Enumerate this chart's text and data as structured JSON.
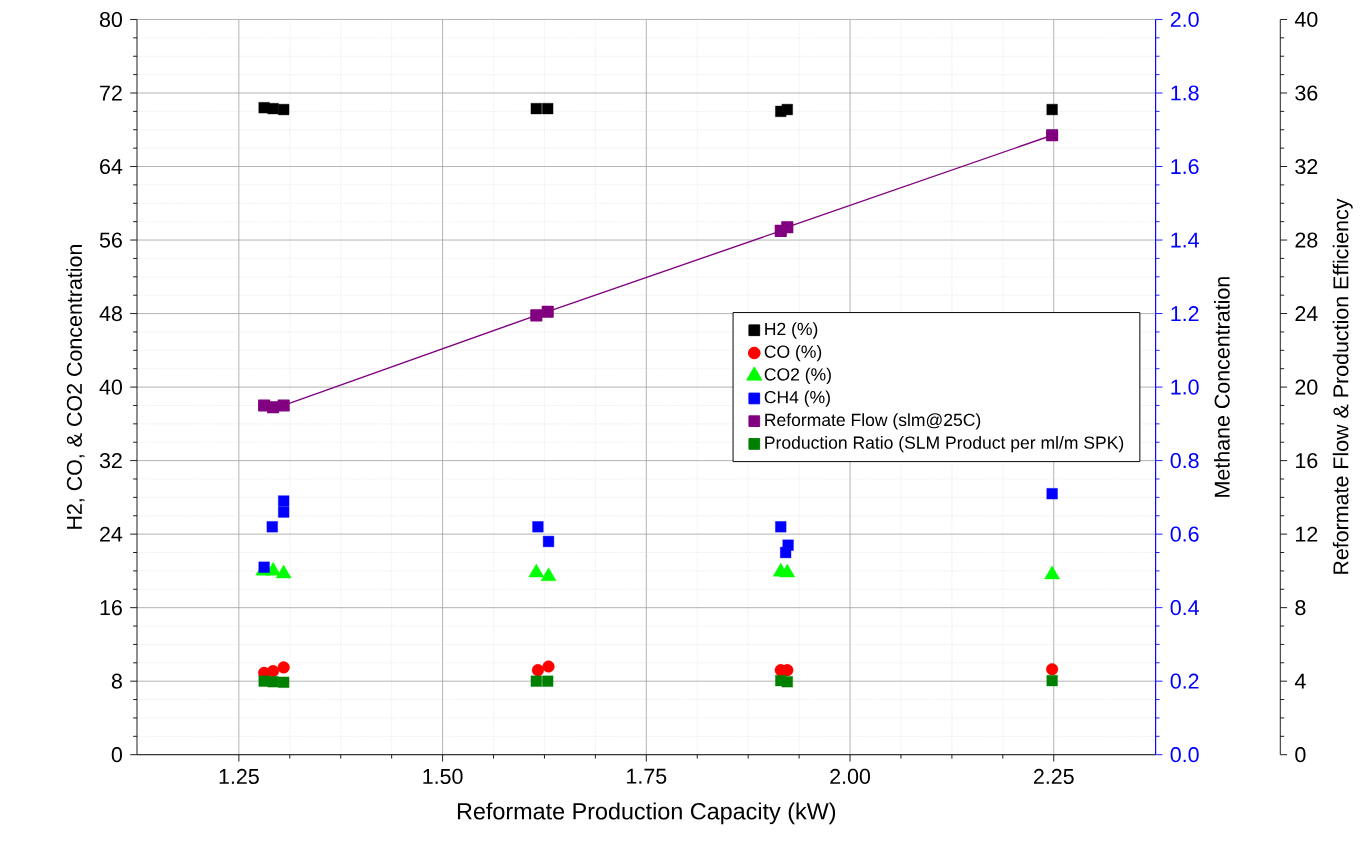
{
  "chart_data": {
    "type": "scatter",
    "xlabel": "Reformate Production Capacity (kW)",
    "ylabel": "H2, CO, & CO2 Concentration",
    "y2label": "Methane Concentration",
    "y3label": "Reformate Flow & Production Efficiency",
    "xlim": [
      1.125,
      2.375
    ],
    "xticks": [
      1.25,
      {
        "value": 1.5,
        "label": "1.50"
      },
      1.75,
      {
        "value": 2.0,
        "label": "2.00"
      },
      2.25
    ],
    "ylim": [
      0,
      80
    ],
    "yticks": [
      0,
      8,
      16,
      24,
      32,
      40,
      48,
      56,
      64,
      72,
      80
    ],
    "y2lim": [
      0,
      2
    ],
    "y2ticks": [
      {
        "value": 0,
        "label": "0.0"
      },
      0.2,
      0.4,
      0.6,
      0.8,
      {
        "value": 1,
        "label": "1.0"
      },
      1.2,
      1.4,
      1.6,
      1.8,
      {
        "value": 2,
        "label": "2.0"
      }
    ],
    "y3lim": [
      0,
      40
    ],
    "y3ticks": [
      0,
      4,
      8,
      12,
      16,
      20,
      24,
      28,
      32,
      36,
      40
    ],
    "grid": true,
    "legend": "right",
    "series": [
      {
        "name": "H2 (%)",
        "marker": "square",
        "color": "#000000",
        "x": [
          1.281,
          1.292,
          1.305,
          1.615,
          1.629,
          1.915,
          1.923,
          2.248
        ],
        "values": [
          70.4,
          70.3,
          70.2,
          70.3,
          70.3,
          70.0,
          70.2,
          70.2
        ]
      },
      {
        "name": "CO (%)",
        "marker": "circle",
        "color": "#ff0000",
        "x": [
          1.281,
          1.292,
          1.305,
          1.617,
          1.63,
          1.915,
          1.923,
          2.248
        ],
        "values": [
          8.9,
          9.1,
          9.5,
          9.2,
          9.6,
          9.2,
          9.2,
          9.3
        ]
      },
      {
        "name": "CO2 (%)",
        "marker": "triangle",
        "color": "#00ff00",
        "x": [
          1.28,
          1.292,
          1.305,
          1.615,
          1.63,
          1.915,
          1.923,
          2.248
        ],
        "values": [
          20.0,
          20.0,
          19.7,
          19.8,
          19.4,
          19.9,
          19.8,
          19.6
        ]
      },
      {
        "name": "CH4 (%)",
        "marker": "square",
        "color": "#0000ff",
        "axis": "y2",
        "x": [
          1.281,
          1.291,
          1.305,
          1.305,
          1.617,
          1.63,
          1.915,
          1.924,
          1.921,
          2.248
        ],
        "values": [
          0.51,
          0.62,
          0.69,
          0.66,
          0.62,
          0.58,
          0.62,
          0.57,
          0.55,
          0.71
        ]
      },
      {
        "name": "Reformate Flow (slm@25C)",
        "type": "line",
        "marker": "square",
        "line_style": "solid",
        "color": "#800080",
        "axis": "y3",
        "x": [
          1.281,
          1.292,
          1.305,
          1.615,
          1.629,
          1.915,
          1.923,
          2.248
        ],
        "values": [
          19.0,
          18.9,
          19.0,
          23.9,
          24.1,
          28.5,
          28.7,
          33.7
        ]
      },
      {
        "name": "Production Ratio (SLM Product per ml/m SPK)",
        "marker": "square",
        "color": "#008000",
        "axis": "y3",
        "x": [
          1.281,
          1.292,
          1.305,
          1.615,
          1.629,
          1.915,
          1.923,
          2.248
        ],
        "values": [
          4.0,
          3.97,
          3.94,
          4.0,
          4.0,
          4.03,
          3.97,
          4.03
        ]
      }
    ]
  }
}
